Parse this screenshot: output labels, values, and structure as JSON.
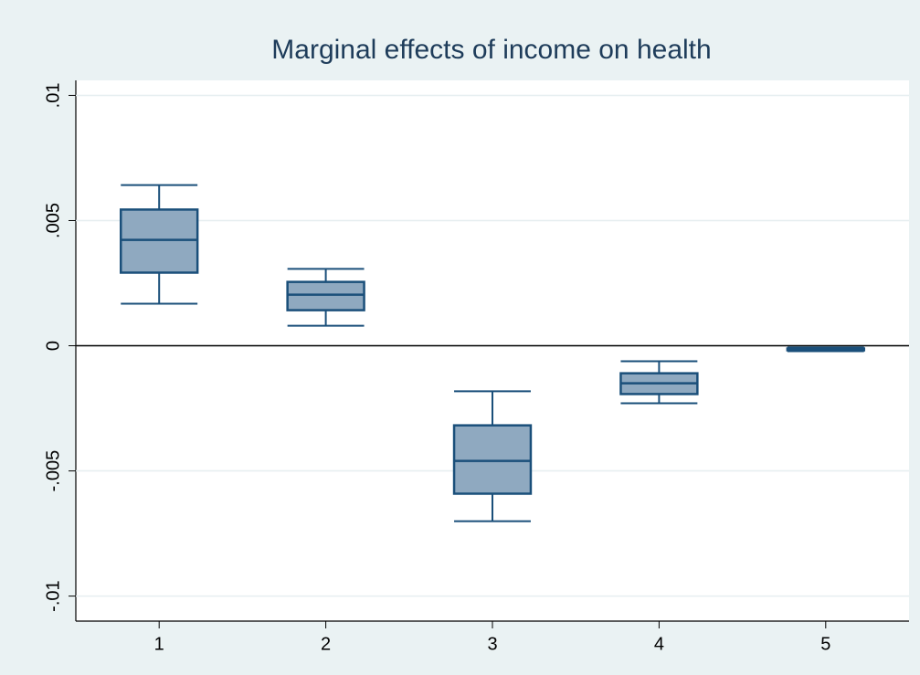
{
  "chart_data": {
    "type": "box",
    "title": "Marginal effects of income on health",
    "categories": [
      "1",
      "2",
      "3",
      "4",
      "5"
    ],
    "max": [
      0.00642,
      0.00307,
      -0.00182,
      -0.00062,
      -7e-05
    ],
    "q3": [
      0.00544,
      0.00255,
      -0.00318,
      -0.0011,
      -0.00011
    ],
    "median": [
      0.00423,
      0.00204,
      -0.0046,
      -0.0015,
      -0.00015
    ],
    "q1": [
      0.00292,
      0.00142,
      -0.00591,
      -0.00193,
      -0.00018
    ],
    "min": [
      0.00168,
      0.0008,
      -0.00701,
      -0.0023,
      -0.00022
    ],
    "color": "#8fa9c0",
    "edge_color": "#1a4f7a",
    "ylim": [
      -0.011,
      0.0106
    ],
    "yticks": [
      {
        "value": -0.01,
        "label": "-.01"
      },
      {
        "value": -0.005,
        "label": "-.005"
      },
      0,
      {
        "value": 0.005,
        "label": ".005"
      },
      {
        "value": 0.01,
        "label": ".01"
      }
    ],
    "grid": true,
    "yline": 0
  }
}
